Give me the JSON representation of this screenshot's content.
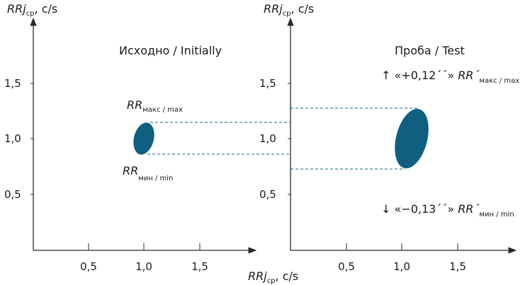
{
  "axis_labels": {
    "left_y_main": "RRj",
    "left_y_sub": "ср",
    "left_y_unit": ", c/s",
    "right_y_main": "RRj",
    "right_y_sub": "ср",
    "right_y_unit": ", c/s",
    "x_main": "RRj",
    "x_sub": "ср",
    "x_unit": ", c/s"
  },
  "left_panel": {
    "title": "Исходно / Initially",
    "y_ticks": [
      "1,5",
      "1,0",
      "0,5"
    ],
    "x_ticks": [
      "0,5",
      "1,0",
      "1,5"
    ],
    "max_label_main": "RR",
    "max_label_sub": "макс / max",
    "min_label_main": "RR",
    "min_label_sub": "мин / min"
  },
  "right_panel": {
    "title": "Проба / Test",
    "y_ticks": [
      "1,5",
      "1,0",
      "0,5"
    ],
    "x_ticks": [
      "0,5",
      "1,0",
      "1,5"
    ],
    "max_note_prefix": "↑ «+0,12´´» ",
    "max_note_main": "RR´",
    "max_note_sub": "макс / max",
    "min_note_prefix": "↓ «−0,13´´» ",
    "min_note_main": "RR´",
    "min_note_sub": "мин / min"
  },
  "colors": {
    "ellipse": "#0f5f80",
    "dashed_lines": "#1b6385",
    "axes": "#2a2a2a"
  }
}
